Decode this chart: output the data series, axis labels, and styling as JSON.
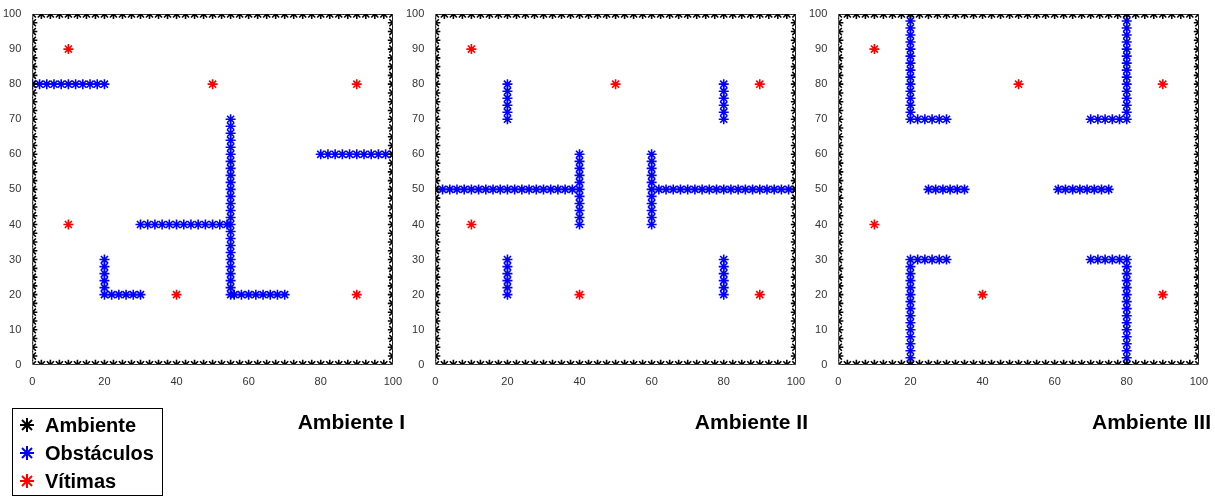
{
  "chart_data": [
    {
      "type": "scatter",
      "title": "Ambiente I",
      "marker": "cross",
      "legend": "bottom left",
      "xlim": [
        0,
        100
      ],
      "ylim": [
        0,
        100
      ],
      "xticks": [
        0,
        20,
        40,
        60,
        80,
        100
      ],
      "yticks": [
        0,
        10,
        20,
        30,
        40,
        50,
        60,
        70,
        80,
        90,
        100
      ],
      "series": [
        {
          "name": "Ambiente",
          "color": "#000000",
          "x": [
            0,
            2.5,
            5,
            7.5,
            10,
            12.5,
            15,
            17.5,
            20,
            22.5,
            25,
            27.5,
            30,
            32.5,
            35,
            37.5,
            40,
            42.5,
            45,
            47.5,
            50,
            52.5,
            55,
            57.5,
            60,
            62.5,
            65,
            67.5,
            70,
            72.5,
            75,
            77.5,
            80,
            82.5,
            85,
            87.5,
            90,
            92.5,
            95,
            97.5,
            100,
            0,
            2.5,
            5,
            7.5,
            10,
            12.5,
            15,
            17.5,
            20,
            22.5,
            25,
            27.5,
            30,
            32.5,
            35,
            37.5,
            40,
            42.5,
            45,
            47.5,
            50,
            52.5,
            55,
            57.5,
            60,
            62.5,
            65,
            67.5,
            70,
            72.5,
            75,
            77.5,
            80,
            82.5,
            85,
            87.5,
            90,
            92.5,
            95,
            97.5,
            100,
            0,
            0,
            0,
            0,
            0,
            0,
            0,
            0,
            0,
            0,
            0,
            0,
            0,
            0,
            0,
            0,
            0,
            0,
            0,
            0,
            0,
            0,
            0,
            0,
            0,
            0,
            0,
            0,
            0,
            0,
            0,
            0,
            0,
            0,
            0,
            0,
            0,
            0,
            0,
            100,
            100,
            100,
            100,
            100,
            100,
            100,
            100,
            100,
            100,
            100,
            100,
            100,
            100,
            100,
            100,
            100,
            100,
            100,
            100,
            100,
            100,
            100,
            100,
            100,
            100,
            100,
            100,
            100,
            100,
            100,
            100,
            100,
            100,
            100,
            100,
            100,
            100,
            100
          ],
          "values": [
            0,
            0,
            0,
            0,
            0,
            0,
            0,
            0,
            0,
            0,
            0,
            0,
            0,
            0,
            0,
            0,
            0,
            0,
            0,
            0,
            0,
            0,
            0,
            0,
            0,
            0,
            0,
            0,
            0,
            0,
            0,
            0,
            0,
            0,
            0,
            0,
            0,
            0,
            0,
            0,
            0,
            100,
            100,
            100,
            100,
            100,
            100,
            100,
            100,
            100,
            100,
            100,
            100,
            100,
            100,
            100,
            100,
            100,
            100,
            100,
            100,
            100,
            100,
            100,
            100,
            100,
            100,
            100,
            100,
            100,
            100,
            100,
            100,
            100,
            100,
            100,
            100,
            100,
            100,
            100,
            100,
            100,
            2.5,
            5,
            7.5,
            10,
            12.5,
            15,
            17.5,
            20,
            22.5,
            25,
            27.5,
            30,
            32.5,
            35,
            37.5,
            40,
            42.5,
            45,
            47.5,
            50,
            52.5,
            55,
            57.5,
            60,
            62.5,
            65,
            67.5,
            70,
            72.5,
            75,
            77.5,
            80,
            82.5,
            85,
            87.5,
            90,
            92.5,
            95,
            97.5,
            2.5,
            5,
            7.5,
            10,
            12.5,
            15,
            17.5,
            20,
            22.5,
            25,
            27.5,
            30,
            32.5,
            35,
            37.5,
            40,
            42.5,
            45,
            47.5,
            50,
            52.5,
            55,
            57.5,
            60,
            62.5,
            65,
            67.5,
            70,
            72.5,
            75,
            77.5,
            80,
            82.5,
            85,
            87.5,
            90,
            92.5,
            95,
            97.5
          ]
        },
        {
          "name": "Obstáculos",
          "color": "#0000ff",
          "x": [
            0,
            2,
            4,
            6,
            8,
            10,
            12,
            14,
            16,
            18,
            20,
            55,
            55,
            55,
            55,
            55,
            55,
            55,
            55,
            55,
            55,
            55,
            55,
            55,
            55,
            55,
            55,
            55,
            55,
            55,
            55,
            55,
            55,
            55,
            55,
            55,
            55,
            30,
            32,
            34,
            36,
            38,
            40,
            42,
            44,
            46,
            48,
            50,
            52,
            54,
            80,
            82,
            84,
            86,
            88,
            90,
            92,
            94,
            96,
            98,
            100,
            20,
            20,
            20,
            20,
            20,
            20,
            22,
            24,
            26,
            28,
            30,
            56,
            58,
            60,
            62,
            64,
            66,
            68,
            70
          ],
          "values": [
            80,
            80,
            80,
            80,
            80,
            80,
            80,
            80,
            80,
            80,
            80,
            20,
            22,
            24,
            26,
            28,
            30,
            32,
            34,
            36,
            38,
            40,
            42,
            44,
            46,
            48,
            50,
            52,
            54,
            56,
            58,
            60,
            62,
            64,
            66,
            68,
            70,
            40,
            40,
            40,
            40,
            40,
            40,
            40,
            40,
            40,
            40,
            40,
            40,
            40,
            60,
            60,
            60,
            60,
            60,
            60,
            60,
            60,
            60,
            60,
            60,
            20,
            22,
            24,
            26,
            28,
            30,
            20,
            20,
            20,
            20,
            20,
            20,
            20,
            20,
            20,
            20,
            20,
            20,
            20
          ]
        },
        {
          "name": "Vítimas",
          "color": "#ff0000",
          "x": [
            10,
            50,
            90,
            10,
            40,
            90
          ],
          "values": [
            90,
            80,
            80,
            40,
            20,
            20
          ]
        }
      ]
    },
    {
      "type": "scatter",
      "title": "Ambiente II",
      "marker": "cross",
      "xlim": [
        0,
        100
      ],
      "ylim": [
        0,
        100
      ],
      "xticks": [
        0,
        20,
        40,
        60,
        80,
        100
      ],
      "yticks": [
        0,
        10,
        20,
        30,
        40,
        50,
        60,
        70,
        80,
        90,
        100
      ],
      "series": [
        {
          "color": "#000000",
          "x": [
            0,
            2.5,
            5,
            7.5,
            10,
            12.5,
            15,
            17.5,
            20,
            22.5,
            25,
            27.5,
            30,
            32.5,
            35,
            37.5,
            40,
            42.5,
            45,
            47.5,
            50,
            52.5,
            55,
            57.5,
            60,
            62.5,
            65,
            67.5,
            70,
            72.5,
            75,
            77.5,
            80,
            82.5,
            85,
            87.5,
            90,
            92.5,
            95,
            97.5,
            100,
            0,
            2.5,
            5,
            7.5,
            10,
            12.5,
            15,
            17.5,
            20,
            22.5,
            25,
            27.5,
            30,
            32.5,
            35,
            37.5,
            40,
            42.5,
            45,
            47.5,
            50,
            52.5,
            55,
            57.5,
            60,
            62.5,
            65,
            67.5,
            70,
            72.5,
            75,
            77.5,
            80,
            82.5,
            85,
            87.5,
            90,
            92.5,
            95,
            97.5,
            100,
            0,
            0,
            0,
            0,
            0,
            0,
            0,
            0,
            0,
            0,
            0,
            0,
            0,
            0,
            0,
            0,
            0,
            0,
            0,
            0,
            0,
            0,
            0,
            0,
            0,
            0,
            0,
            0,
            0,
            0,
            0,
            0,
            0,
            0,
            0,
            0,
            0,
            0,
            0,
            100,
            100,
            100,
            100,
            100,
            100,
            100,
            100,
            100,
            100,
            100,
            100,
            100,
            100,
            100,
            100,
            100,
            100,
            100,
            100,
            100,
            100,
            100,
            100,
            100,
            100,
            100,
            100,
            100,
            100,
            100,
            100,
            100,
            100,
            100,
            100,
            100,
            100,
            100
          ],
          "values": [
            0,
            0,
            0,
            0,
            0,
            0,
            0,
            0,
            0,
            0,
            0,
            0,
            0,
            0,
            0,
            0,
            0,
            0,
            0,
            0,
            0,
            0,
            0,
            0,
            0,
            0,
            0,
            0,
            0,
            0,
            0,
            0,
            0,
            0,
            0,
            0,
            0,
            0,
            0,
            0,
            0,
            100,
            100,
            100,
            100,
            100,
            100,
            100,
            100,
            100,
            100,
            100,
            100,
            100,
            100,
            100,
            100,
            100,
            100,
            100,
            100,
            100,
            100,
            100,
            100,
            100,
            100,
            100,
            100,
            100,
            100,
            100,
            100,
            100,
            100,
            100,
            100,
            100,
            100,
            100,
            100,
            100,
            2.5,
            5,
            7.5,
            10,
            12.5,
            15,
            17.5,
            20,
            22.5,
            25,
            27.5,
            30,
            32.5,
            35,
            37.5,
            40,
            42.5,
            45,
            47.5,
            50,
            52.5,
            55,
            57.5,
            60,
            62.5,
            65,
            67.5,
            70,
            72.5,
            75,
            77.5,
            80,
            82.5,
            85,
            87.5,
            90,
            92.5,
            95,
            97.5,
            2.5,
            5,
            7.5,
            10,
            12.5,
            15,
            17.5,
            20,
            22.5,
            25,
            27.5,
            30,
            32.5,
            35,
            37.5,
            40,
            42.5,
            45,
            47.5,
            50,
            52.5,
            55,
            57.5,
            60,
            62.5,
            65,
            67.5,
            70,
            72.5,
            75,
            77.5,
            80,
            82.5,
            85,
            87.5,
            90,
            92.5,
            95,
            97.5
          ]
        },
        {
          "color": "#0000ff",
          "x": [
            0,
            2,
            4,
            6,
            8,
            10,
            12,
            14,
            16,
            18,
            20,
            22,
            24,
            26,
            28,
            30,
            32,
            34,
            36,
            38,
            40,
            40,
            40,
            40,
            40,
            40,
            40,
            40,
            40,
            40,
            40,
            60,
            60,
            60,
            60,
            60,
            60,
            60,
            60,
            60,
            60,
            60,
            62,
            64,
            66,
            68,
            70,
            72,
            74,
            76,
            78,
            80,
            82,
            84,
            86,
            88,
            90,
            92,
            94,
            96,
            98,
            100,
            20,
            20,
            20,
            20,
            20,
            20,
            80,
            80,
            80,
            80,
            80,
            80,
            20,
            20,
            20,
            20,
            20,
            20,
            80,
            80,
            80,
            80,
            80,
            80
          ],
          "values": [
            50,
            50,
            50,
            50,
            50,
            50,
            50,
            50,
            50,
            50,
            50,
            50,
            50,
            50,
            50,
            50,
            50,
            50,
            50,
            50,
            50,
            40,
            42,
            44,
            46,
            48,
            52,
            54,
            56,
            58,
            60,
            40,
            42,
            44,
            46,
            48,
            50,
            52,
            54,
            56,
            58,
            60,
            50,
            50,
            50,
            50,
            50,
            50,
            50,
            50,
            50,
            50,
            50,
            50,
            50,
            50,
            50,
            50,
            50,
            50,
            50,
            50,
            70,
            72,
            74,
            76,
            78,
            80,
            70,
            72,
            74,
            76,
            78,
            80,
            20,
            22,
            24,
            26,
            28,
            30,
            20,
            22,
            24,
            26,
            28,
            30
          ]
        },
        {
          "color": "#ff0000",
          "x": [
            10,
            50,
            90,
            10,
            40,
            90
          ],
          "values": [
            90,
            80,
            80,
            40,
            20,
            20
          ]
        }
      ]
    },
    {
      "type": "scatter",
      "title": "Ambiente III",
      "marker": "cross",
      "xlim": [
        0,
        100
      ],
      "ylim": [
        0,
        100
      ],
      "xticks": [
        0,
        20,
        40,
        60,
        80,
        100
      ],
      "yticks": [
        0,
        10,
        20,
        30,
        40,
        50,
        60,
        70,
        80,
        90,
        100
      ],
      "series": [
        {
          "color": "#000000",
          "x": [
            0,
            2.5,
            5,
            7.5,
            10,
            12.5,
            15,
            17.5,
            20,
            22.5,
            25,
            27.5,
            30,
            32.5,
            35,
            37.5,
            40,
            42.5,
            45,
            47.5,
            50,
            52.5,
            55,
            57.5,
            60,
            62.5,
            65,
            67.5,
            70,
            72.5,
            75,
            77.5,
            80,
            82.5,
            85,
            87.5,
            90,
            92.5,
            95,
            97.5,
            100,
            0,
            2.5,
            5,
            7.5,
            10,
            12.5,
            15,
            17.5,
            20,
            22.5,
            25,
            27.5,
            30,
            32.5,
            35,
            37.5,
            40,
            42.5,
            45,
            47.5,
            50,
            52.5,
            55,
            57.5,
            60,
            62.5,
            65,
            67.5,
            70,
            72.5,
            75,
            77.5,
            80,
            82.5,
            85,
            87.5,
            90,
            92.5,
            95,
            97.5,
            100,
            0,
            0,
            0,
            0,
            0,
            0,
            0,
            0,
            0,
            0,
            0,
            0,
            0,
            0,
            0,
            0,
            0,
            0,
            0,
            0,
            0,
            0,
            0,
            0,
            0,
            0,
            0,
            0,
            0,
            0,
            0,
            0,
            0,
            0,
            0,
            0,
            0,
            0,
            0,
            100,
            100,
            100,
            100,
            100,
            100,
            100,
            100,
            100,
            100,
            100,
            100,
            100,
            100,
            100,
            100,
            100,
            100,
            100,
            100,
            100,
            100,
            100,
            100,
            100,
            100,
            100,
            100,
            100,
            100,
            100,
            100,
            100,
            100,
            100,
            100,
            100,
            100,
            100
          ],
          "values": [
            0,
            0,
            0,
            0,
            0,
            0,
            0,
            0,
            0,
            0,
            0,
            0,
            0,
            0,
            0,
            0,
            0,
            0,
            0,
            0,
            0,
            0,
            0,
            0,
            0,
            0,
            0,
            0,
            0,
            0,
            0,
            0,
            0,
            0,
            0,
            0,
            0,
            0,
            0,
            0,
            0,
            100,
            100,
            100,
            100,
            100,
            100,
            100,
            100,
            100,
            100,
            100,
            100,
            100,
            100,
            100,
            100,
            100,
            100,
            100,
            100,
            100,
            100,
            100,
            100,
            100,
            100,
            100,
            100,
            100,
            100,
            100,
            100,
            100,
            100,
            100,
            100,
            100,
            100,
            100,
            100,
            100,
            2.5,
            5,
            7.5,
            10,
            12.5,
            15,
            17.5,
            20,
            22.5,
            25,
            27.5,
            30,
            32.5,
            35,
            37.5,
            40,
            42.5,
            45,
            47.5,
            50,
            52.5,
            55,
            57.5,
            60,
            62.5,
            65,
            67.5,
            70,
            72.5,
            75,
            77.5,
            80,
            82.5,
            85,
            87.5,
            90,
            92.5,
            95,
            97.5,
            2.5,
            5,
            7.5,
            10,
            12.5,
            15,
            17.5,
            20,
            22.5,
            25,
            27.5,
            30,
            32.5,
            35,
            37.5,
            40,
            42.5,
            45,
            47.5,
            50,
            52.5,
            55,
            57.5,
            60,
            62.5,
            65,
            67.5,
            70,
            72.5,
            75,
            77.5,
            80,
            82.5,
            85,
            87.5,
            90,
            92.5,
            95,
            97.5
          ]
        },
        {
          "color": "#0000ff",
          "x": [
            20,
            20,
            20,
            20,
            20,
            20,
            20,
            20,
            20,
            20,
            20,
            20,
            20,
            20,
            20,
            20,
            22,
            24,
            26,
            28,
            30,
            80,
            80,
            80,
            80,
            80,
            80,
            80,
            80,
            80,
            80,
            80,
            80,
            80,
            80,
            80,
            80,
            70,
            72,
            74,
            76,
            78,
            25,
            27,
            29,
            31,
            33,
            35,
            61,
            63,
            65,
            67,
            69,
            71,
            73,
            75,
            20,
            20,
            20,
            20,
            20,
            20,
            20,
            20,
            20,
            20,
            20,
            20,
            20,
            20,
            20,
            20,
            22,
            24,
            26,
            28,
            30,
            80,
            80,
            80,
            80,
            80,
            80,
            80,
            80,
            80,
            80,
            80,
            80,
            80,
            80,
            80,
            80,
            70,
            72,
            74,
            76,
            78
          ],
          "values": [
            70,
            72,
            74,
            76,
            78,
            80,
            82,
            84,
            86,
            88,
            90,
            92,
            94,
            96,
            98,
            100,
            70,
            70,
            70,
            70,
            70,
            70,
            72,
            74,
            76,
            78,
            80,
            82,
            84,
            86,
            88,
            90,
            92,
            94,
            96,
            98,
            100,
            70,
            70,
            70,
            70,
            70,
            50,
            50,
            50,
            50,
            50,
            50,
            50,
            50,
            50,
            50,
            50,
            50,
            50,
            50,
            0,
            2,
            4,
            6,
            8,
            10,
            12,
            14,
            16,
            18,
            20,
            22,
            24,
            26,
            28,
            30,
            30,
            30,
            30,
            30,
            30,
            0,
            2,
            4,
            6,
            8,
            10,
            12,
            14,
            16,
            18,
            20,
            22,
            24,
            26,
            28,
            30,
            30,
            30,
            30,
            30,
            30
          ]
        },
        {
          "color": "#ff0000",
          "x": [
            10,
            50,
            90,
            10,
            40,
            90
          ],
          "values": [
            90,
            80,
            80,
            40,
            20,
            20
          ]
        }
      ]
    }
  ]
}
